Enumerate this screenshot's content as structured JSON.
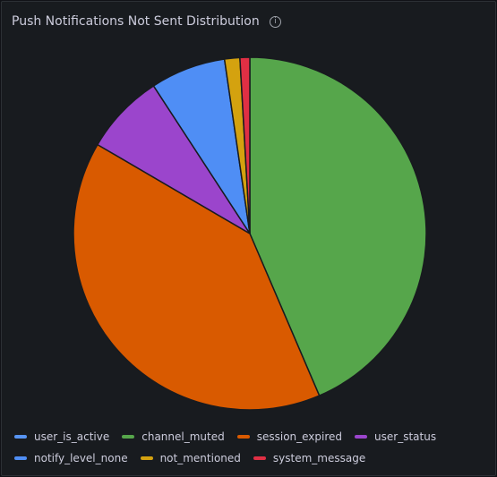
{
  "chart_data": {
    "type": "pie",
    "title": "Push Notifications Not Sent Distribution",
    "series": [
      {
        "name": "user_is_active",
        "color": "#5794f2",
        "values": [
          0
        ]
      },
      {
        "name": "channel_muted",
        "color": "#56a64b",
        "values": [
          43.6
        ]
      },
      {
        "name": "session_expired",
        "color": "#d95a00",
        "values": [
          39.9
        ]
      },
      {
        "name": "user_status",
        "color": "#9b45cc",
        "values": [
          7.4
        ]
      },
      {
        "name": "notify_level_none",
        "color": "#4f8ef5",
        "values": [
          6.9
        ]
      },
      {
        "name": "not_mentioned",
        "color": "#d4a20f",
        "values": [
          1.4
        ]
      },
      {
        "name": "system_message",
        "color": "#e02f44",
        "values": [
          0.9
        ]
      }
    ]
  }
}
